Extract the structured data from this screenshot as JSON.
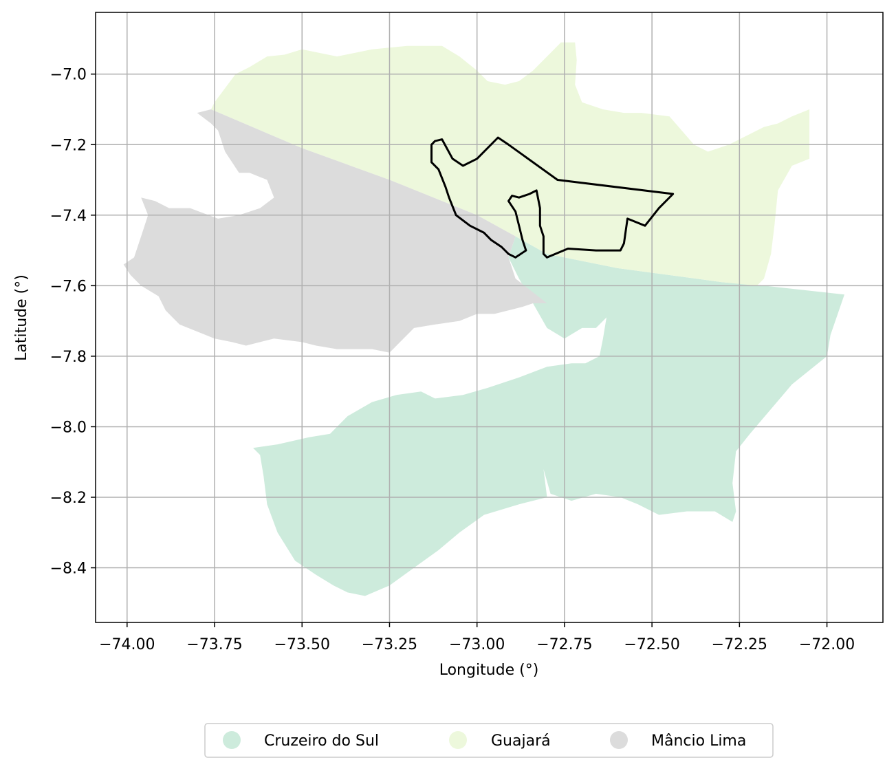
{
  "chart_data": {
    "type": "map",
    "xlabel": "Longitude (°)",
    "ylabel": "Latitude (°)",
    "xlim": [
      -74.09,
      -71.84
    ],
    "ylim": [
      -8.555,
      -6.825
    ],
    "grid": true,
    "x_ticks": [
      {
        "value": -74.0,
        "label": "−74.00"
      },
      {
        "value": -73.75,
        "label": "−73.75"
      },
      {
        "value": -73.5,
        "label": "−73.50"
      },
      {
        "value": -73.25,
        "label": "−73.25"
      },
      {
        "value": -73.0,
        "label": "−73.00"
      },
      {
        "value": -72.75,
        "label": "−72.75"
      },
      {
        "value": -72.5,
        "label": "−72.50"
      },
      {
        "value": -72.25,
        "label": "−72.25"
      },
      {
        "value": -72.0,
        "label": "−72.00"
      }
    ],
    "y_ticks": [
      {
        "value": -7.0,
        "label": "−7.0"
      },
      {
        "value": -7.2,
        "label": "−7.2"
      },
      {
        "value": -7.4,
        "label": "−7.4"
      },
      {
        "value": -7.6,
        "label": "−7.6"
      },
      {
        "value": -7.8,
        "label": "−7.8"
      },
      {
        "value": -8.0,
        "label": "−8.0"
      },
      {
        "value": -8.2,
        "label": "−8.2"
      },
      {
        "value": -8.4,
        "label": "−8.4"
      }
    ],
    "legend_placement": "bottom-center",
    "regions": [
      {
        "name": "Cruzeiro do Sul",
        "color": "#cdebdc",
        "coords": [
          [
            -72.89,
            -7.46
          ],
          [
            -72.8,
            -7.51
          ],
          [
            -72.6,
            -7.55
          ],
          [
            -72.3,
            -7.59
          ],
          [
            -72.18,
            -7.6
          ],
          [
            -71.95,
            -7.625
          ],
          [
            -71.99,
            -7.74
          ],
          [
            -72.0,
            -7.8
          ],
          [
            -72.1,
            -7.88
          ],
          [
            -72.16,
            -7.95
          ],
          [
            -72.22,
            -8.02
          ],
          [
            -72.26,
            -8.07
          ],
          [
            -72.27,
            -8.16
          ],
          [
            -72.26,
            -8.24
          ],
          [
            -72.27,
            -8.27
          ],
          [
            -72.32,
            -8.24
          ],
          [
            -72.4,
            -8.24
          ],
          [
            -72.48,
            -8.25
          ],
          [
            -72.54,
            -8.22
          ],
          [
            -72.59,
            -8.2
          ],
          [
            -72.66,
            -8.19
          ],
          [
            -72.73,
            -8.21
          ],
          [
            -72.79,
            -8.19
          ],
          [
            -72.81,
            -8.12
          ],
          [
            -72.8,
            -8.2
          ],
          [
            -72.88,
            -8.22
          ],
          [
            -72.98,
            -8.25
          ],
          [
            -73.05,
            -8.3
          ],
          [
            -73.11,
            -8.35
          ],
          [
            -73.18,
            -8.4
          ],
          [
            -73.25,
            -8.45
          ],
          [
            -73.32,
            -8.48
          ],
          [
            -73.37,
            -8.47
          ],
          [
            -73.41,
            -8.45
          ],
          [
            -73.46,
            -8.42
          ],
          [
            -73.52,
            -8.38
          ],
          [
            -73.57,
            -8.3
          ],
          [
            -73.6,
            -8.22
          ],
          [
            -73.61,
            -8.14
          ],
          [
            -73.62,
            -8.08
          ],
          [
            -73.64,
            -8.06
          ],
          [
            -73.57,
            -8.05
          ],
          [
            -73.48,
            -8.03
          ],
          [
            -73.42,
            -8.02
          ],
          [
            -73.37,
            -7.97
          ],
          [
            -73.3,
            -7.93
          ],
          [
            -73.23,
            -7.91
          ],
          [
            -73.16,
            -7.9
          ],
          [
            -73.12,
            -7.92
          ],
          [
            -73.04,
            -7.91
          ],
          [
            -72.97,
            -7.89
          ],
          [
            -72.88,
            -7.86
          ],
          [
            -72.8,
            -7.83
          ],
          [
            -72.73,
            -7.82
          ],
          [
            -72.69,
            -7.82
          ],
          [
            -72.65,
            -7.8
          ],
          [
            -72.64,
            -7.75
          ],
          [
            -72.63,
            -7.69
          ],
          [
            -72.66,
            -7.72
          ],
          [
            -72.7,
            -7.72
          ],
          [
            -72.75,
            -7.75
          ],
          [
            -72.8,
            -7.72
          ],
          [
            -72.84,
            -7.65
          ],
          [
            -72.88,
            -7.58
          ],
          [
            -72.91,
            -7.52
          ]
        ]
      },
      {
        "name": "Guajará",
        "color": "#edf8dc",
        "coords": [
          [
            -73.75,
            -7.08
          ],
          [
            -73.69,
            -7.0
          ],
          [
            -73.65,
            -6.98
          ],
          [
            -73.6,
            -6.95
          ],
          [
            -73.55,
            -6.945
          ],
          [
            -73.5,
            -6.93
          ],
          [
            -73.4,
            -6.95
          ],
          [
            -73.3,
            -6.93
          ],
          [
            -73.2,
            -6.92
          ],
          [
            -73.1,
            -6.92
          ],
          [
            -73.05,
            -6.95
          ],
          [
            -73.0,
            -6.99
          ],
          [
            -72.97,
            -7.02
          ],
          [
            -72.92,
            -7.03
          ],
          [
            -72.88,
            -7.02
          ],
          [
            -72.84,
            -6.99
          ],
          [
            -72.8,
            -6.95
          ],
          [
            -72.76,
            -6.91
          ],
          [
            -72.72,
            -6.91
          ],
          [
            -72.715,
            -6.96
          ],
          [
            -72.72,
            -7.03
          ],
          [
            -72.7,
            -7.08
          ],
          [
            -72.64,
            -7.1
          ],
          [
            -72.58,
            -7.11
          ],
          [
            -72.53,
            -7.11
          ],
          [
            -72.45,
            -7.12
          ],
          [
            -72.38,
            -7.2
          ],
          [
            -72.34,
            -7.22
          ],
          [
            -72.28,
            -7.2
          ],
          [
            -72.22,
            -7.17
          ],
          [
            -72.18,
            -7.15
          ],
          [
            -72.14,
            -7.14
          ],
          [
            -72.1,
            -7.12
          ],
          [
            -72.05,
            -7.1
          ],
          [
            -72.05,
            -7.17
          ],
          [
            -72.05,
            -7.24
          ],
          [
            -72.1,
            -7.26
          ],
          [
            -72.14,
            -7.33
          ],
          [
            -72.15,
            -7.43
          ],
          [
            -72.16,
            -7.51
          ],
          [
            -72.18,
            -7.58
          ],
          [
            -72.2,
            -7.6
          ],
          [
            -72.3,
            -7.59
          ],
          [
            -72.6,
            -7.55
          ],
          [
            -72.8,
            -7.51
          ],
          [
            -72.89,
            -7.46
          ],
          [
            -73.0,
            -7.4
          ],
          [
            -73.25,
            -7.3
          ],
          [
            -73.5,
            -7.21
          ],
          [
            -73.76,
            -7.1
          ]
        ]
      },
      {
        "name": "Mâncio Lima",
        "color": "#dcdcdc",
        "coords": [
          [
            -73.8,
            -7.11
          ],
          [
            -73.76,
            -7.14
          ],
          [
            -73.74,
            -7.16
          ],
          [
            -73.72,
            -7.22
          ],
          [
            -73.68,
            -7.28
          ],
          [
            -73.65,
            -7.28
          ],
          [
            -73.6,
            -7.3
          ],
          [
            -73.58,
            -7.35
          ],
          [
            -73.62,
            -7.38
          ],
          [
            -73.68,
            -7.4
          ],
          [
            -73.74,
            -7.41
          ],
          [
            -73.82,
            -7.38
          ],
          [
            -73.88,
            -7.38
          ],
          [
            -73.92,
            -7.36
          ],
          [
            -73.96,
            -7.35
          ],
          [
            -73.94,
            -7.4
          ],
          [
            -73.96,
            -7.46
          ],
          [
            -73.98,
            -7.52
          ],
          [
            -74.01,
            -7.54
          ],
          [
            -73.99,
            -7.57
          ],
          [
            -73.96,
            -7.6
          ],
          [
            -73.91,
            -7.63
          ],
          [
            -73.89,
            -7.67
          ],
          [
            -73.85,
            -7.71
          ],
          [
            -73.8,
            -7.73
          ],
          [
            -73.75,
            -7.75
          ],
          [
            -73.7,
            -7.76
          ],
          [
            -73.66,
            -7.77
          ],
          [
            -73.58,
            -7.75
          ],
          [
            -73.5,
            -7.76
          ],
          [
            -73.46,
            -7.77
          ],
          [
            -73.4,
            -7.78
          ],
          [
            -73.35,
            -7.78
          ],
          [
            -73.3,
            -7.78
          ],
          [
            -73.25,
            -7.79
          ],
          [
            -73.22,
            -7.76
          ],
          [
            -73.18,
            -7.72
          ],
          [
            -73.12,
            -7.71
          ],
          [
            -73.05,
            -7.7
          ],
          [
            -73.0,
            -7.68
          ],
          [
            -72.95,
            -7.68
          ],
          [
            -72.91,
            -7.67
          ],
          [
            -72.87,
            -7.66
          ],
          [
            -72.84,
            -7.65
          ],
          [
            -72.8,
            -7.65
          ],
          [
            -72.89,
            -7.58
          ],
          [
            -72.91,
            -7.52
          ],
          [
            -72.89,
            -7.46
          ],
          [
            -73.0,
            -7.4
          ],
          [
            -73.25,
            -7.3
          ],
          [
            -73.5,
            -7.21
          ],
          [
            -73.76,
            -7.1
          ]
        ]
      }
    ],
    "outline": {
      "color": "#000000",
      "coords": [
        [
          -73.12,
          -7.19
        ],
        [
          -73.1,
          -7.185
        ],
        [
          -73.07,
          -7.24
        ],
        [
          -73.04,
          -7.26
        ],
        [
          -73.0,
          -7.24
        ],
        [
          -72.94,
          -7.18
        ],
        [
          -72.91,
          -7.2
        ],
        [
          -72.77,
          -7.3
        ],
        [
          -72.44,
          -7.34
        ],
        [
          -72.48,
          -7.38
        ],
        [
          -72.52,
          -7.43
        ],
        [
          -72.57,
          -7.41
        ],
        [
          -72.58,
          -7.48
        ],
        [
          -72.59,
          -7.5
        ],
        [
          -72.66,
          -7.5
        ],
        [
          -72.74,
          -7.495
        ],
        [
          -72.8,
          -7.52
        ],
        [
          -72.81,
          -7.51
        ],
        [
          -72.81,
          -7.46
        ],
        [
          -72.82,
          -7.43
        ],
        [
          -72.82,
          -7.38
        ],
        [
          -72.83,
          -7.33
        ],
        [
          -72.85,
          -7.34
        ],
        [
          -72.88,
          -7.35
        ],
        [
          -72.9,
          -7.345
        ],
        [
          -72.91,
          -7.36
        ],
        [
          -72.89,
          -7.39
        ],
        [
          -72.88,
          -7.43
        ],
        [
          -72.87,
          -7.47
        ],
        [
          -72.86,
          -7.5
        ],
        [
          -72.89,
          -7.52
        ],
        [
          -72.91,
          -7.51
        ],
        [
          -72.93,
          -7.49
        ],
        [
          -72.96,
          -7.47
        ],
        [
          -72.98,
          -7.45
        ],
        [
          -73.02,
          -7.43
        ],
        [
          -73.06,
          -7.4
        ],
        [
          -73.08,
          -7.35
        ],
        [
          -73.09,
          -7.32
        ],
        [
          -73.11,
          -7.27
        ],
        [
          -73.13,
          -7.25
        ],
        [
          -73.13,
          -7.2
        ]
      ]
    }
  }
}
